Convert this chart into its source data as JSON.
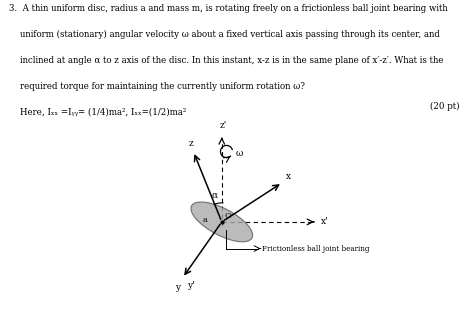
{
  "background_color": "#ffffff",
  "fig_width": 4.74,
  "fig_height": 3.17,
  "dpi": 100,
  "text_lines": [
    "3.  A thin uniform disc, radius a and mass m, is rotating freely on a frictionless ball joint bearing with",
    "    uniform (stationary) angular velocity ω about a fixed vertical axis passing through its center, and",
    "    inclined at angle α to z axis of the disc. In this instant, x-z is in the same plane of x′-z′. What is the",
    "    required torque for maintaining the currently uniform rotation ω?",
    "    Here, Iₓₓ =Iᵧᵧ= (1/4)ma², Iₓₓ=(1/2)ma²"
  ],
  "points_text": "(20 pt)",
  "text_fontsize": 6.2,
  "label_fontsize": 6.5,
  "disc_color": "#aaaaaa",
  "disc_edge_color": "#555555",
  "axis_color": "#000000",
  "dashed_color": "#555555"
}
